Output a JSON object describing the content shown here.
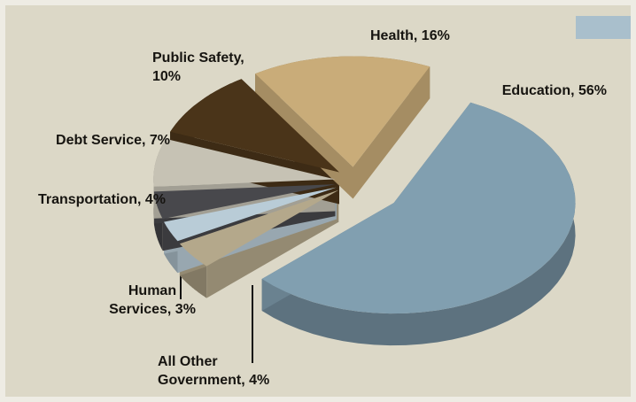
{
  "chart_data": {
    "type": "pie",
    "values": [
      56,
      4,
      3,
      4,
      7,
      10,
      16
    ],
    "value_labels": [
      "Education, 56%",
      "All Other Government, 4%",
      "Human Services, 3%",
      "Transportation, 4%",
      "Debt Service, 7%",
      "Public Safety, 10%",
      "Health, 16%"
    ],
    "colors": [
      "#819fb0",
      "#b4a88b",
      "#b9ccd7",
      "#48484c",
      "#c6c2b4",
      "#4a3419",
      "#c9ac79"
    ]
  }
}
